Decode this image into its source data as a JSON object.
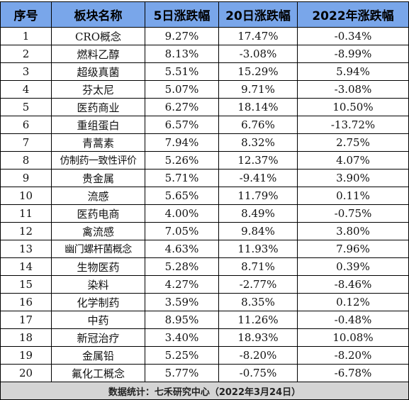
{
  "headers": [
    "序号",
    "板块名称",
    "5日涨跌幅",
    "20日涨跌幅",
    "2022年涨跌幅"
  ],
  "rows": [
    [
      "1",
      "CRO概念",
      "9.27%",
      "17.47%",
      "-0.34%"
    ],
    [
      "2",
      "燃料乙醇",
      "8.13%",
      "-3.08%",
      "-8.99%"
    ],
    [
      "3",
      "超级真菌",
      "5.51%",
      "15.29%",
      "5.94%"
    ],
    [
      "4",
      "芬太尼",
      "5.07%",
      "9.71%",
      "-3.08%"
    ],
    [
      "5",
      "医药商业",
      "6.27%",
      "18.14%",
      "10.50%"
    ],
    [
      "6",
      "重组蛋白",
      "6.57%",
      "6.76%",
      "-13.72%"
    ],
    [
      "7",
      "青蒿素",
      "7.94%",
      "8.32%",
      "2.75%"
    ],
    [
      "8",
      "仿制药一致性评价",
      "5.26%",
      "12.37%",
      "4.07%"
    ],
    [
      "9",
      "贵金属",
      "5.71%",
      "-9.41%",
      "3.90%"
    ],
    [
      "10",
      "流感",
      "5.65%",
      "11.79%",
      "0.11%"
    ],
    [
      "11",
      "医药电商",
      "4.00%",
      "8.49%",
      "-0.75%"
    ],
    [
      "12",
      "禽流感",
      "7.05%",
      "9.84%",
      "3.80%"
    ],
    [
      "13",
      "幽门螺杆菌概念",
      "4.63%",
      "11.93%",
      "7.96%"
    ],
    [
      "14",
      "生物医药",
      "5.28%",
      "8.71%",
      "0.39%"
    ],
    [
      "15",
      "染料",
      "4.27%",
      "-2.77%",
      "-8.46%"
    ],
    [
      "16",
      "化学制药",
      "3.59%",
      "8.35%",
      "0.12%"
    ],
    [
      "17",
      "中药",
      "8.95%",
      "11.26%",
      "-0.48%"
    ],
    [
      "18",
      "新冠治疗",
      "3.40%",
      "18.93%",
      "10.08%"
    ],
    [
      "19",
      "金属铅",
      "5.25%",
      "-8.20%",
      "-8.20%"
    ],
    [
      "20",
      "氟化工概念",
      "5.77%",
      "-0.75%",
      "-6.78%"
    ]
  ],
  "footer": "数据统计：七禾研究中心（2022年3月24日）",
  "colors": {
    "header_bg": "#79a6ea",
    "footer_bg": "#d4d4d4",
    "border": "#000000"
  }
}
